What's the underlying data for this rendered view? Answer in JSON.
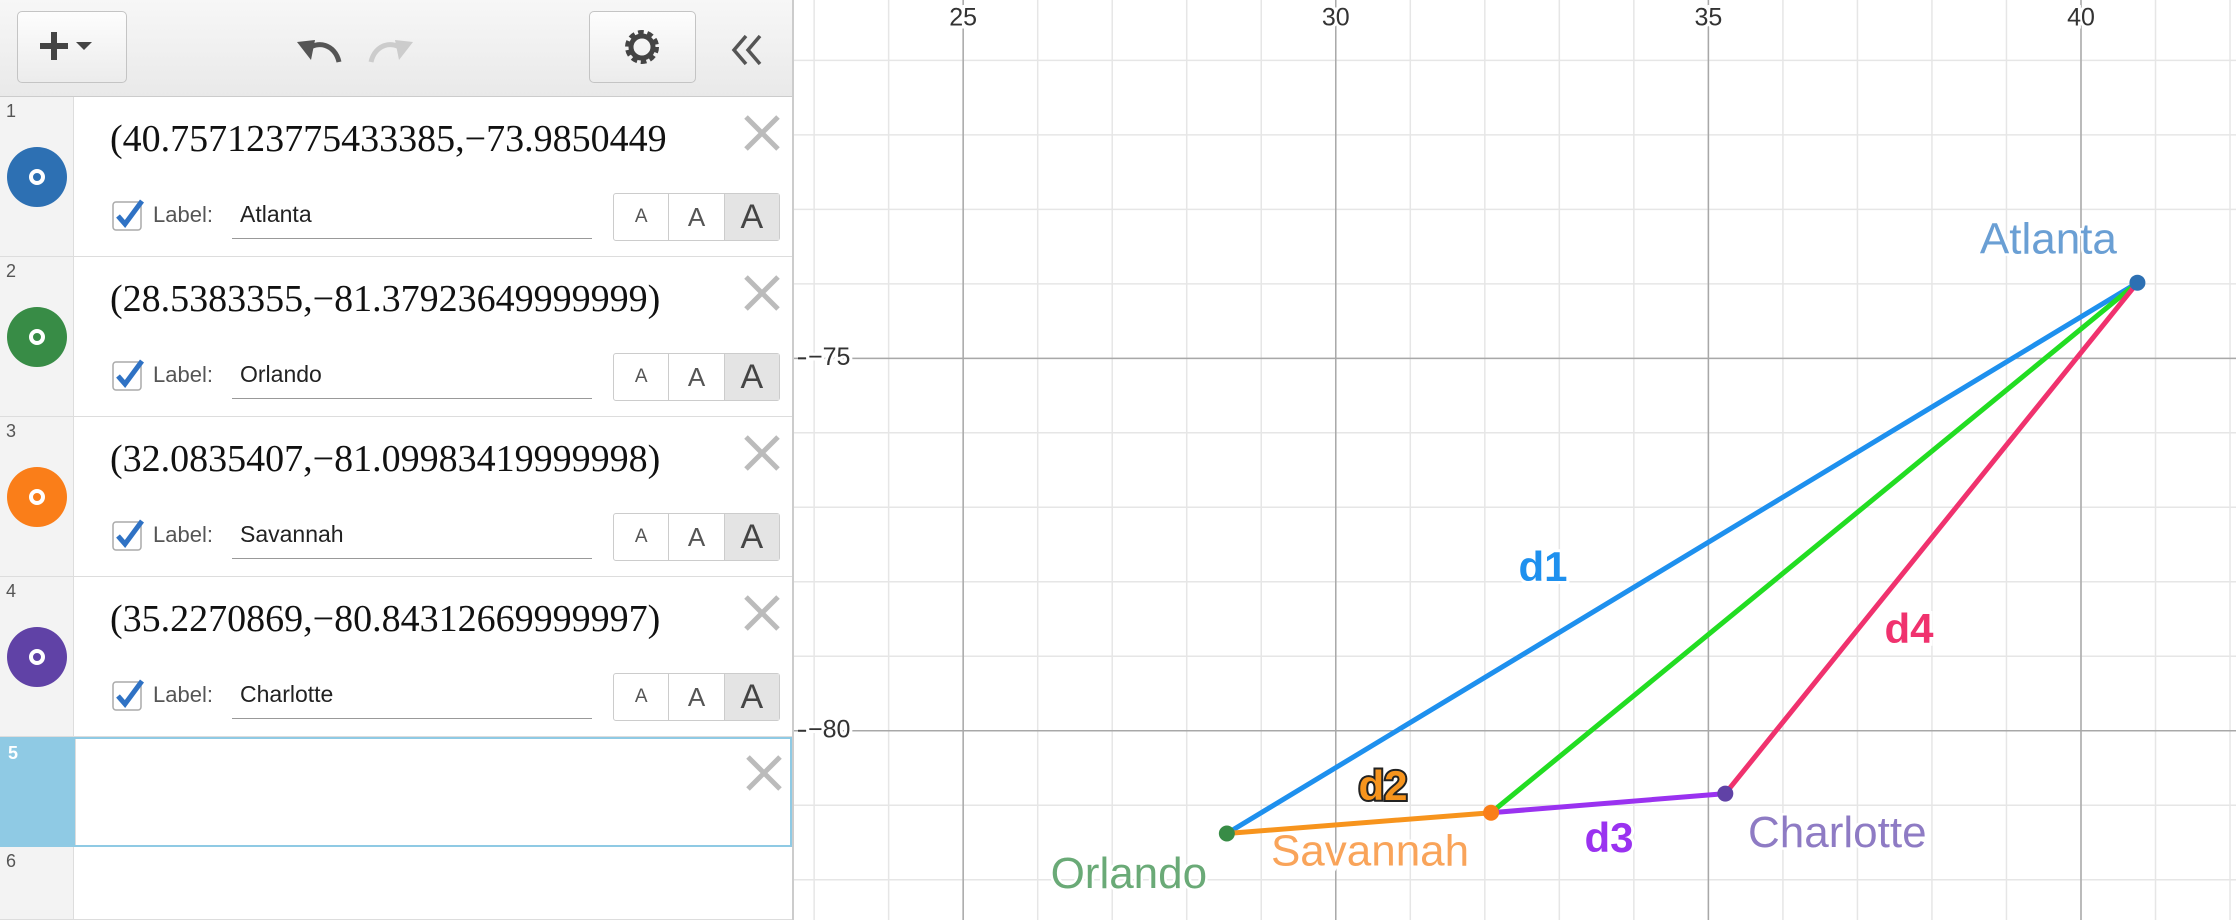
{
  "label_size_options": [
    "A",
    "A",
    "A"
  ],
  "expressions": [
    {
      "index": 1,
      "text": "(40.757123775433385,−73.9850449",
      "label_caption": "Label:",
      "label": "Atlanta"
    },
    {
      "index": 2,
      "text": "(28.5383355,−81.37923649999999)",
      "label_caption": "Label:",
      "label": "Orlando"
    },
    {
      "index": 3,
      "text": "(32.0835407,−81.09983419999998)",
      "label_caption": "Label:",
      "label": "Savannah"
    },
    {
      "index": 4,
      "text": "(35.2270869,−80.84312669999997)",
      "label_caption": "Label:",
      "label": "Charlotte"
    },
    {
      "index": 5
    },
    {
      "index": 6
    }
  ],
  "graph": {
    "xlim": [
      22.73,
      42.08
    ],
    "ylim": [
      -82.54,
      -70.19
    ],
    "xticks": [
      25,
      30,
      35,
      40
    ],
    "yticks": [
      {
        "value": -75,
        "label": "−75"
      },
      {
        "value": -80,
        "label": "−80"
      }
    ],
    "grid_step": 1,
    "points": [
      {
        "name": "Atlanta",
        "x": 40.757123775433385,
        "y": -73.9850449,
        "color": "#2d70b3",
        "label_color": "#6a9fd4"
      },
      {
        "name": "Orlando",
        "x": 28.5383355,
        "y": -81.37923649999999,
        "color": "#388c46",
        "label_color": "#6aaa77"
      },
      {
        "name": "Savannah",
        "x": 32.0835407,
        "y": -81.09983419999998,
        "color": "#fa7e19",
        "label_color": "#f9a45a"
      },
      {
        "name": "Charlotte",
        "x": 35.2270869,
        "y": -80.84312669999997,
        "color": "#6042a6",
        "label_color": "#8e7bc4"
      }
    ],
    "segments": [
      {
        "label": "d1",
        "from": "Atlanta",
        "to": "Orlando",
        "color": "#1e90ee"
      },
      {
        "label": "d2",
        "from": "Orlando",
        "to": "Savannah",
        "color": "#f7941d"
      },
      {
        "from": "Savannah",
        "to": "Atlanta",
        "color": "#22dd22"
      },
      {
        "label": "d3",
        "from": "Savannah",
        "to": "Charlotte",
        "color": "#9a32f0"
      },
      {
        "label": "d4",
        "from": "Charlotte",
        "to": "Atlanta",
        "color": "#f0326e"
      }
    ]
  }
}
